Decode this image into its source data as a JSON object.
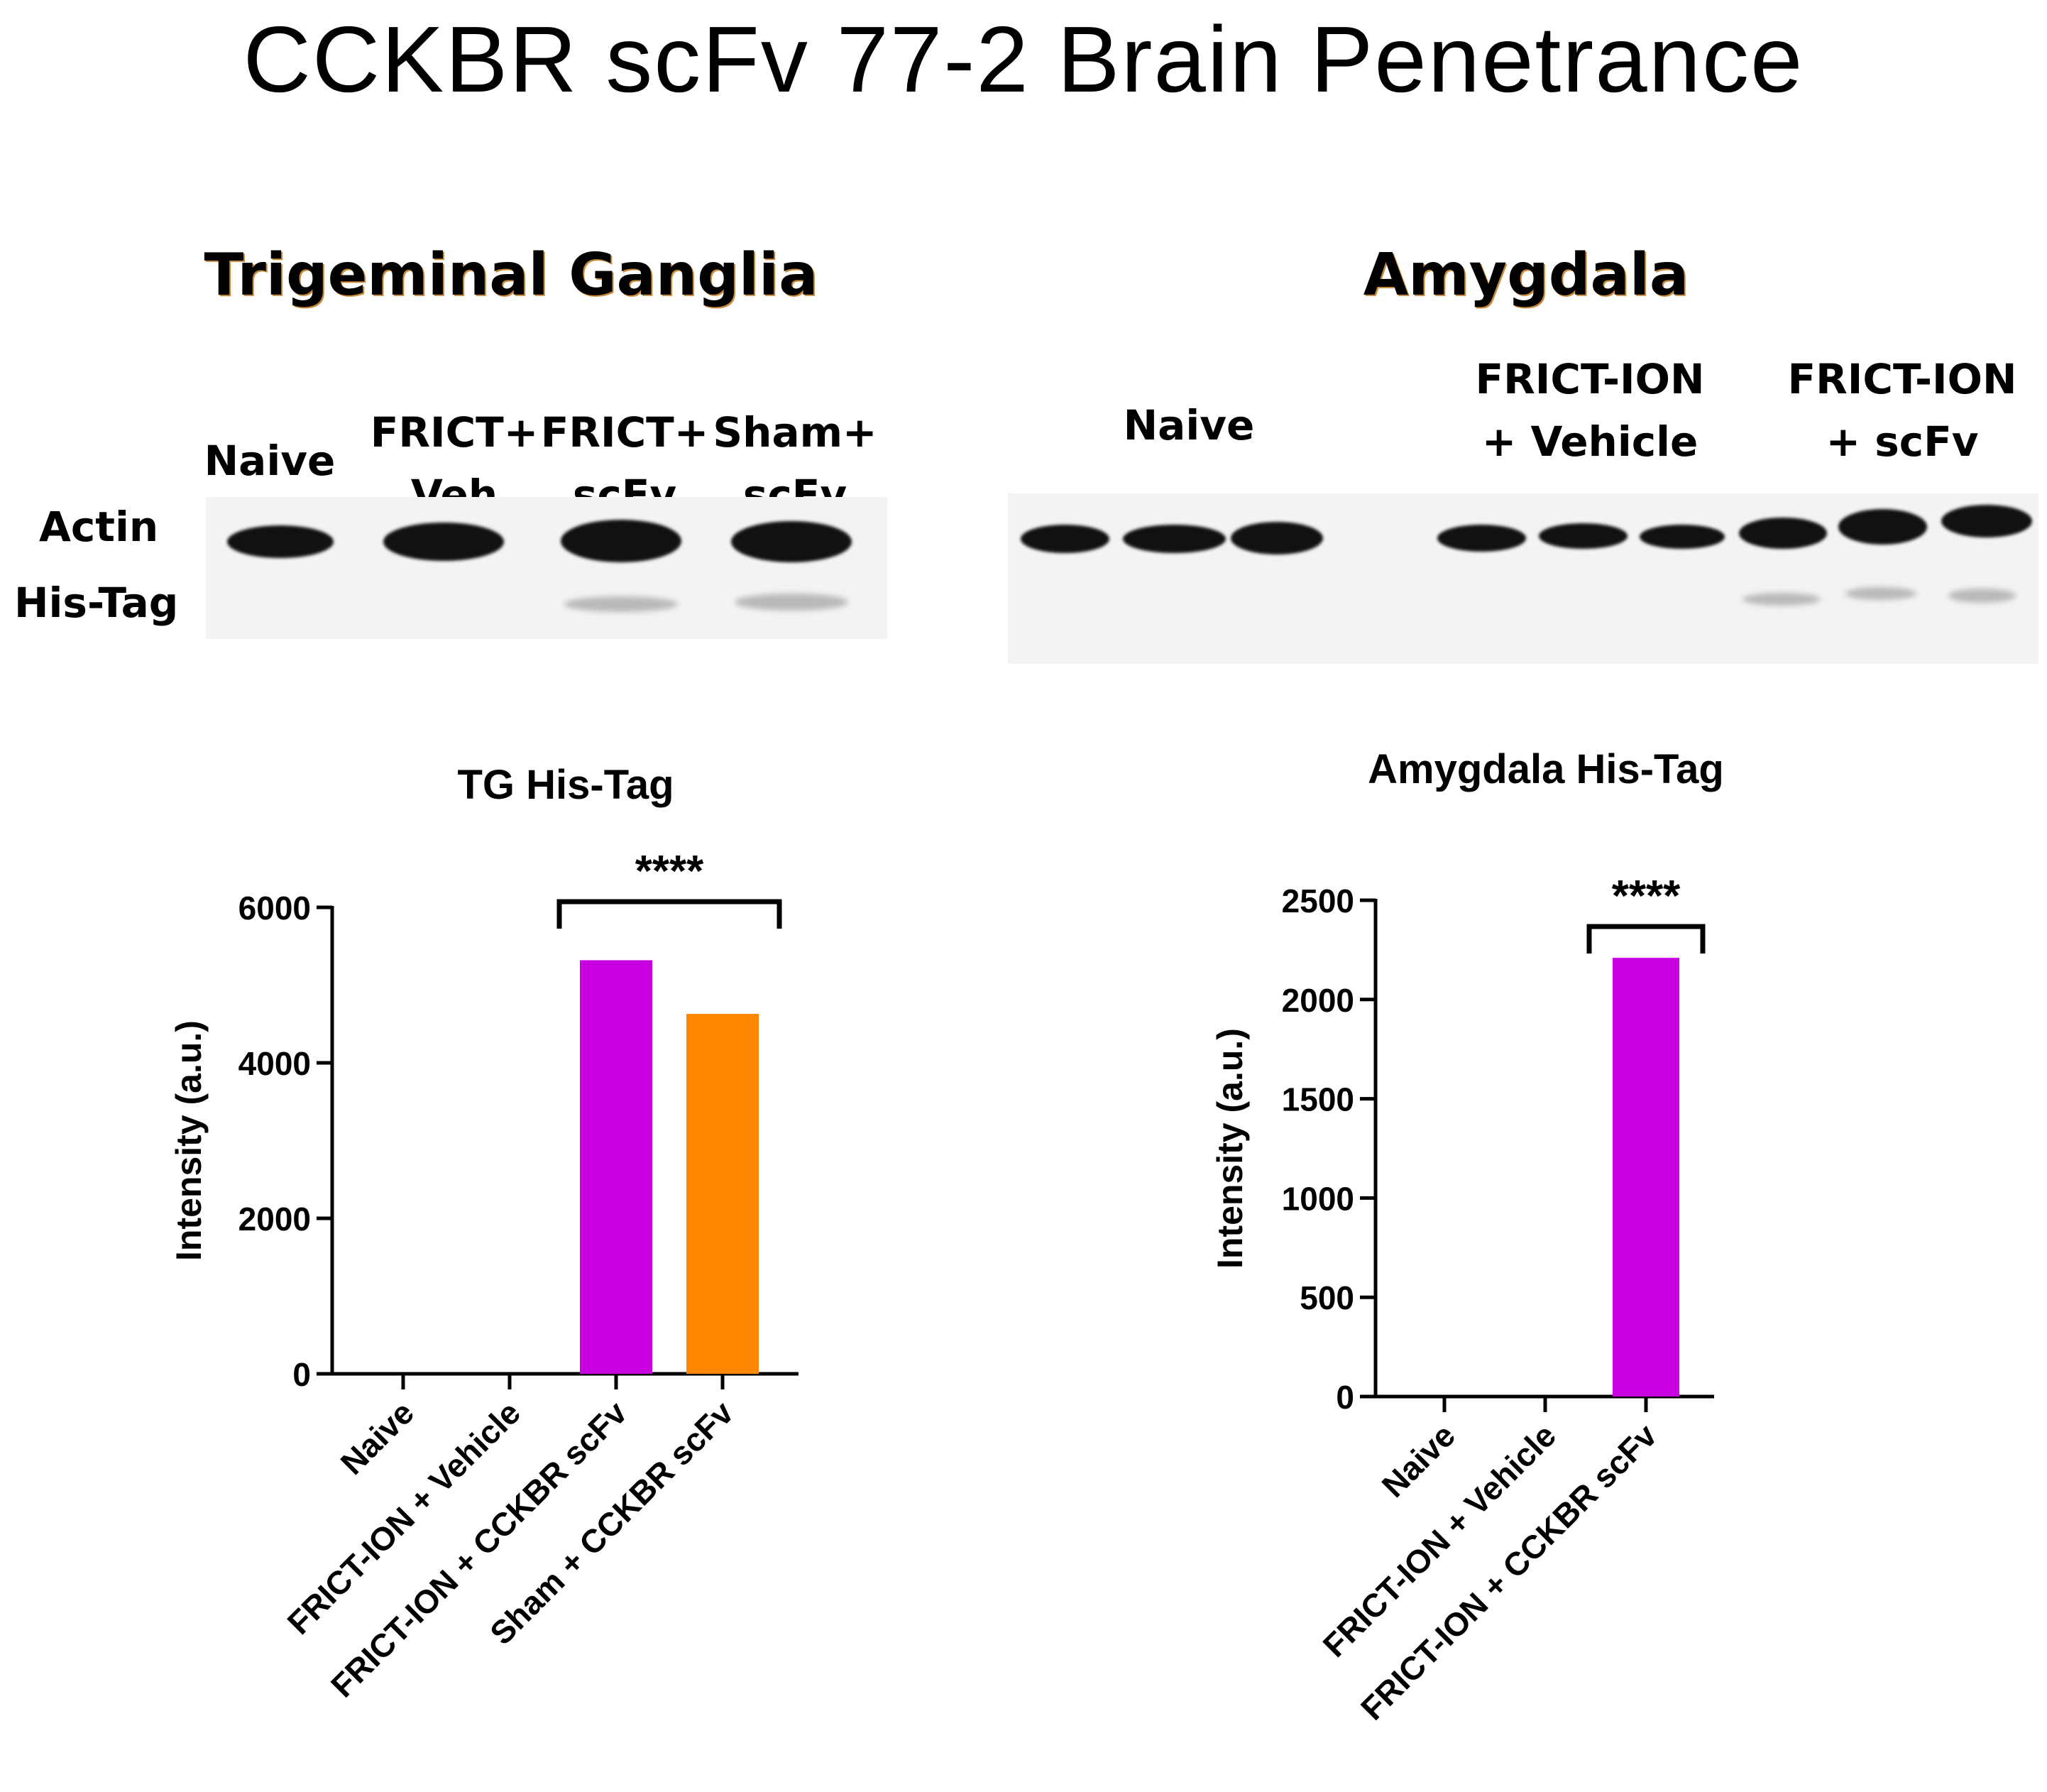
{
  "figure": {
    "title": "CCKBR scFv 77-2 Brain Penetrance"
  },
  "blots": {
    "tg": {
      "title": "Trigeminal Ganglia",
      "row_labels": [
        "Actin",
        "His-Tag"
      ],
      "lanes": [
        {
          "line1": "Naive",
          "line2": ""
        },
        {
          "line1": "FRICT+",
          "line2": "Veh"
        },
        {
          "line1": "FRICT+",
          "line2": "scFv"
        },
        {
          "line1": "Sham+",
          "line2": "scFv"
        }
      ]
    },
    "amygdala": {
      "title": "Amygdala",
      "lanes": [
        {
          "line1": "Naive",
          "line2": ""
        },
        {
          "line1": "FRICT-ION",
          "line2": "+  Vehicle"
        },
        {
          "line1": "FRICT-ION",
          "line2": "+ scFv"
        }
      ]
    }
  },
  "chart_data": [
    {
      "type": "bar",
      "title": "TG His-Tag",
      "xlabel": "",
      "ylabel": "Intensity (a.u.)",
      "categories": [
        "Naive",
        "FRICT-ION + Vehicle",
        "FRICT-ION + CCKBR scFv",
        "Sham + CCKBR scFv"
      ],
      "values": [
        0,
        0,
        5320,
        4630
      ],
      "colors": [
        "#c800e0",
        "#c800e0",
        "#c800e0",
        "#ff8800"
      ],
      "ylim": [
        0,
        6000
      ],
      "yticks": [
        0,
        2000,
        4000,
        6000
      ],
      "significance": {
        "from": 2,
        "to": 3,
        "label": "****"
      }
    },
    {
      "type": "bar",
      "title": "Amygdala His-Tag",
      "xlabel": "",
      "ylabel": "Intensity (a.u.)",
      "categories": [
        "Naive",
        "FRICT-ION + Vehicle",
        "FRICT-ION + CCKBR scFv"
      ],
      "values": [
        0,
        0,
        2210
      ],
      "colors": [
        "#c800e0",
        "#c800e0",
        "#c800e0"
      ],
      "ylim": [
        0,
        2500
      ],
      "yticks": [
        0,
        500,
        1000,
        1500,
        2000,
        2500
      ],
      "significance": {
        "from": 2,
        "to": 2,
        "label": "****"
      }
    }
  ]
}
